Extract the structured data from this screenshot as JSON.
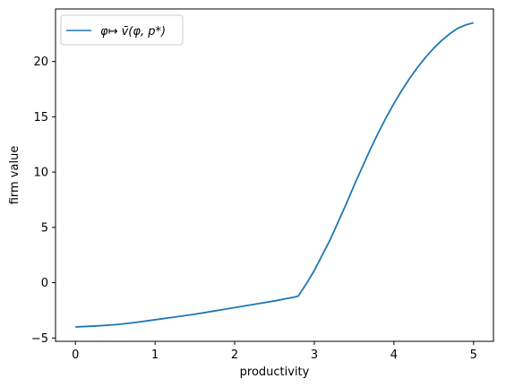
{
  "chart_data": {
    "type": "line",
    "xlabel": "productivity",
    "ylabel": "firm value",
    "xlim": [
      -0.25,
      5.25
    ],
    "ylim": [
      -5.3,
      24.75
    ],
    "xticks": [
      0,
      1,
      2,
      3,
      4,
      5
    ],
    "yticks": [
      -5,
      0,
      5,
      10,
      15,
      20
    ],
    "xtick_labels": [
      "0",
      "1",
      "2",
      "3",
      "4",
      "5"
    ],
    "ytick_labels": [
      "−5",
      "0",
      "5",
      "10",
      "15",
      "20"
    ],
    "grid": false,
    "legend": {
      "placement": "top-left"
    },
    "series": [
      {
        "name": "φ↦ v̄(φ, p*)",
        "color": "#1f77b4",
        "x": [
          0,
          0.25,
          0.5,
          0.75,
          1.0,
          1.25,
          1.5,
          1.75,
          2.0,
          2.25,
          2.5,
          2.75,
          2.8,
          2.9,
          3.0,
          3.1,
          3.2,
          3.3,
          3.4,
          3.5,
          3.6,
          3.7,
          3.8,
          3.9,
          4.0,
          4.1,
          4.2,
          4.3,
          4.4,
          4.5,
          4.6,
          4.7,
          4.8,
          4.9,
          5.0
        ],
        "y": [
          -4.0,
          -3.92,
          -3.8,
          -3.6,
          -3.35,
          -3.1,
          -2.85,
          -2.55,
          -2.25,
          -1.95,
          -1.65,
          -1.3,
          -1.2,
          -0.1,
          1.1,
          2.5,
          3.9,
          5.5,
          7.1,
          8.8,
          10.4,
          12.0,
          13.5,
          14.9,
          16.2,
          17.4,
          18.5,
          19.5,
          20.4,
          21.2,
          21.9,
          22.5,
          23.0,
          23.3,
          23.5
        ]
      }
    ]
  }
}
